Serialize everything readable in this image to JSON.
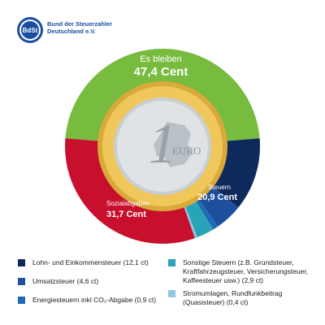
{
  "header": {
    "logo_mark": "BdSt",
    "org_line1": "Bund der Steuerzahler",
    "org_line2": "Deutschland e.V."
  },
  "colors": {
    "brand_blue": "#1a4ea0",
    "green": "#77bb3f",
    "red": "#c8102e",
    "navy": "#0e2a5c",
    "blue": "#1d4f9c",
    "mid_blue": "#1f6bb5",
    "teal": "#29a3b8",
    "light_blue": "#8fc7dc",
    "gold": "#e2b53d",
    "silver": "#cfd4d8"
  },
  "coin": {
    "numeral": "1",
    "text": "EURO"
  },
  "chart_data": {
    "type": "pie",
    "unit": "Cent",
    "total": 100,
    "labels": {
      "remaining": {
        "line1": "Es bleiben",
        "line2": "47,4 Cent"
      },
      "taxes": {
        "line1": "Steuern",
        "line2": "20,9 Cent"
      },
      "social": {
        "line1": "Sozialabgaben",
        "line2": "31,7 Cent"
      }
    },
    "slices": [
      {
        "key": "remaining",
        "value": 47.4,
        "color": "#77bb3f"
      },
      {
        "key": "lohn",
        "value": 12.1,
        "color": "#0e2a5c"
      },
      {
        "key": "umsatz",
        "value": 4.6,
        "color": "#1d4f9c"
      },
      {
        "key": "energie",
        "value": 0.9,
        "color": "#1f6bb5"
      },
      {
        "key": "sonstige",
        "value": 2.9,
        "color": "#29a3b8"
      },
      {
        "key": "strom",
        "value": 0.4,
        "color": "#8fc7dc"
      },
      {
        "key": "social",
        "value": 31.7,
        "color": "#c8102e"
      }
    ],
    "legend": [
      {
        "key": "lohn",
        "text": "Lohn- und Einkommensteuer (12,1 ct)",
        "color": "#0e2a5c"
      },
      {
        "key": "umsatz",
        "text": "Umsatzsteuer (4,6 ct)",
        "color": "#1d4f9c"
      },
      {
        "key": "energie",
        "text": "Energiesteuern inkl CO₂-Abgabe (0,9 ct)",
        "color": "#1f6bb5"
      },
      {
        "key": "sonstige",
        "text": "Sonstige Steuern (z.B. Grundsteuer, Kraftfahrzeugsteuer, Versicherungsteuer, Kaffeesteuer usw.) (2,9 ct)",
        "color": "#29a3b8"
      },
      {
        "key": "strom",
        "text": "Stromumlagen, Rundfunkbeitrag (Quasisteuer) (0,4 ct)",
        "color": "#8fc7dc"
      }
    ]
  }
}
